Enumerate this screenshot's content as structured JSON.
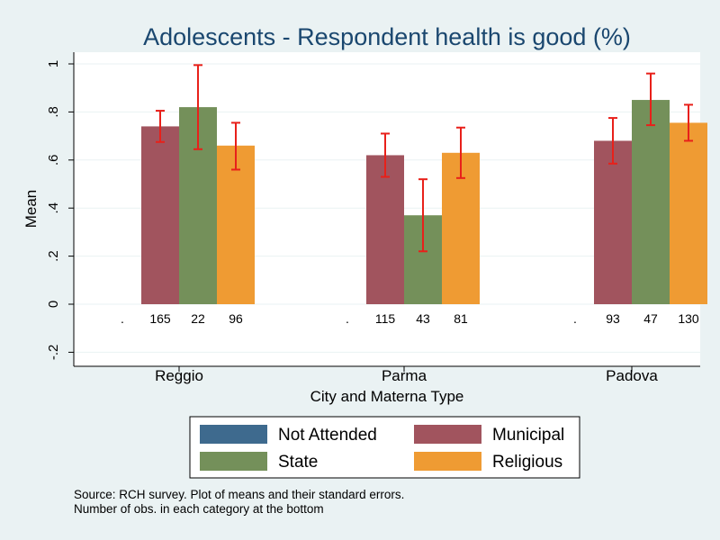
{
  "chart_data": {
    "type": "bar",
    "title": "Adolescents - Respondent health is good (%)",
    "xlabel": "City and Materna Type",
    "ylabel": "Mean",
    "ylim": [
      -0.2,
      1.05
    ],
    "yticks": [
      {
        "value": -0.2,
        "label": "-.2"
      },
      {
        "value": 0,
        "label": "0"
      },
      {
        "value": 0.2,
        "label": ".2"
      },
      {
        "value": 0.4,
        "label": ".4"
      },
      {
        "value": 0.6,
        "label": ".6"
      },
      {
        "value": 0.8,
        "label": ".8"
      },
      {
        "value": 1,
        "label": "1"
      }
    ],
    "grid": true,
    "categories": [
      "Reggio",
      "Parma",
      "Padova"
    ],
    "series": [
      {
        "name": "Not Attended",
        "color": "#3e6a8e",
        "values": [
          null,
          null,
          null
        ],
        "low": [
          null,
          null,
          null
        ],
        "high": [
          null,
          null,
          null
        ],
        "n": [
          ".",
          ".",
          "."
        ]
      },
      {
        "name": "Municipal",
        "color": "#a1545e",
        "values": [
          0.74,
          0.62,
          0.68
        ],
        "low": [
          0.675,
          0.53,
          0.585
        ],
        "high": [
          0.805,
          0.71,
          0.775
        ],
        "n": [
          "165",
          "115",
          "93"
        ]
      },
      {
        "name": "State",
        "color": "#74905a",
        "values": [
          0.82,
          0.37,
          0.85
        ],
        "low": [
          0.645,
          0.22,
          0.745
        ],
        "high": [
          0.995,
          0.52,
          0.96
        ],
        "n": [
          "22",
          "43",
          "47"
        ]
      },
      {
        "name": "Religious",
        "color": "#ef9b33",
        "values": [
          0.66,
          0.63,
          0.755
        ],
        "low": [
          0.56,
          0.525,
          0.68
        ],
        "high": [
          0.755,
          0.735,
          0.83
        ],
        "n": [
          "96",
          "81",
          "130"
        ]
      }
    ],
    "errorbar_color": "#e8201a",
    "legend_position": "bottom",
    "note_lines": [
      "Source: RCH survey. Plot of means and their standard errors.",
      "Number of obs. in each category at the bottom"
    ]
  }
}
